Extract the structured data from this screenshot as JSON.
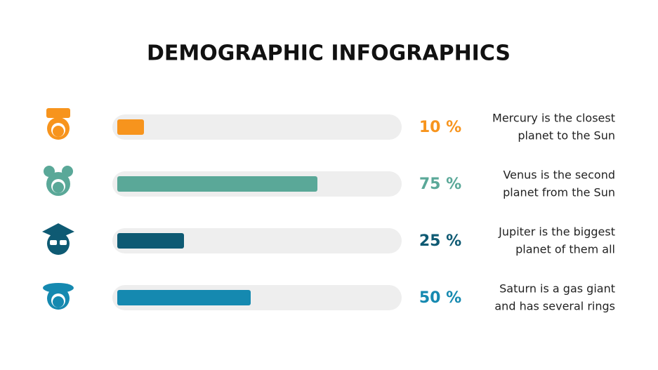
{
  "chart_data": {
    "type": "progress",
    "title": "DEMOGRAPHIC INFOGRAPHICS",
    "values": [
      10,
      75,
      25,
      50
    ],
    "value_labels": [
      "10 %",
      "75 %",
      "25 %",
      "50 %"
    ],
    "colors": [
      "#f7941d",
      "#5aa898",
      "#0e5a73",
      "#1589b0"
    ],
    "descriptions": [
      [
        "Mercury is the closest",
        "planet to the Sun"
      ],
      [
        "Venus is the second",
        "planet from the Sun"
      ],
      [
        "Jupiter is the biggest",
        "planet of them all"
      ],
      [
        "Saturn is a gas giant",
        "and has several rings"
      ]
    ],
    "xlim": [
      0,
      100
    ]
  }
}
